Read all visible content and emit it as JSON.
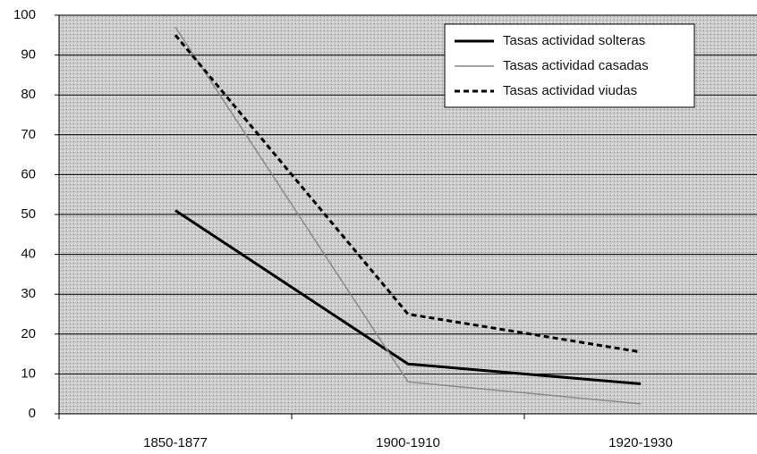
{
  "chart_data": {
    "type": "line",
    "categories": [
      "1850-1877",
      "1900-1910",
      "1920-1930"
    ],
    "series": [
      {
        "name": "Tasas actividad solteras",
        "color": "#000000",
        "values": [
          51,
          12.5,
          7.5
        ]
      },
      {
        "name": "Tasas actividad casadas",
        "color": "#8a8a8a",
        "values": [
          97,
          8,
          2.5
        ]
      },
      {
        "name": "Tasas actividad viudas",
        "color": "#000000",
        "values": [
          95,
          25,
          15.5
        ]
      }
    ],
    "ylim": [
      0,
      100
    ],
    "yticks": [
      0,
      10,
      20,
      30,
      40,
      50,
      60,
      70,
      80,
      90,
      100
    ],
    "grid": true,
    "legend": "upper right"
  }
}
